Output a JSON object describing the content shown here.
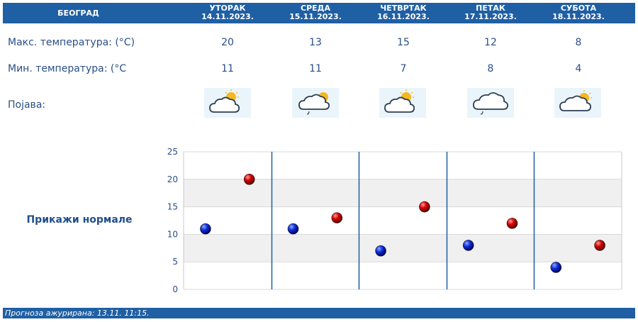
{
  "header": {
    "city": "БЕОГРАД",
    "days": [
      {
        "name": "УТОРАК",
        "date": "14.11.2023."
      },
      {
        "name": "СРЕДА",
        "date": "15.11.2023."
      },
      {
        "name": "ЧЕТВРТАК",
        "date": "16.11.2023."
      },
      {
        "name": "ПЕТАК",
        "date": "17.11.2023."
      },
      {
        "name": "СУБОТА",
        "date": "18.11.2023."
      }
    ]
  },
  "rows": {
    "max_label": "Макс. температура: (°C)",
    "min_label": "Мин. температура: (°C",
    "phenomenon_label": "Појава:"
  },
  "forecast": [
    {
      "max": "20",
      "min": "11",
      "icon": "partly-cloudy-sun-icon"
    },
    {
      "max": "13",
      "min": "11",
      "icon": "cloud-sun-drizzle-icon"
    },
    {
      "max": "15",
      "min": "7",
      "icon": "partly-cloudy-sun-icon"
    },
    {
      "max": "12",
      "min": "8",
      "icon": "cloud-drizzle-icon"
    },
    {
      "max": "8",
      "min": "4",
      "icon": "partly-cloudy-sun-icon"
    }
  ],
  "normals_link": "Прикажи нормале",
  "footer": {
    "text": "Прогноза ажурирана:  13.11. 11:15."
  },
  "chart_data": {
    "type": "scatter",
    "categories": [
      "14.11.2023.",
      "15.11.2023.",
      "16.11.2023.",
      "17.11.2023.",
      "18.11.2023."
    ],
    "series": [
      {
        "color": "#0000cc",
        "values": [
          11,
          11,
          7,
          8,
          4
        ]
      },
      {
        "color": "#cc0000",
        "values": [
          20,
          13,
          15,
          12,
          8
        ]
      }
    ],
    "ylim": [
      0,
      25
    ],
    "yticks": [
      "0",
      "5",
      "10",
      "15",
      "20",
      "25"
    ],
    "grid": true,
    "band_colors": [
      "#ffffff",
      "#f0f0f0"
    ]
  }
}
